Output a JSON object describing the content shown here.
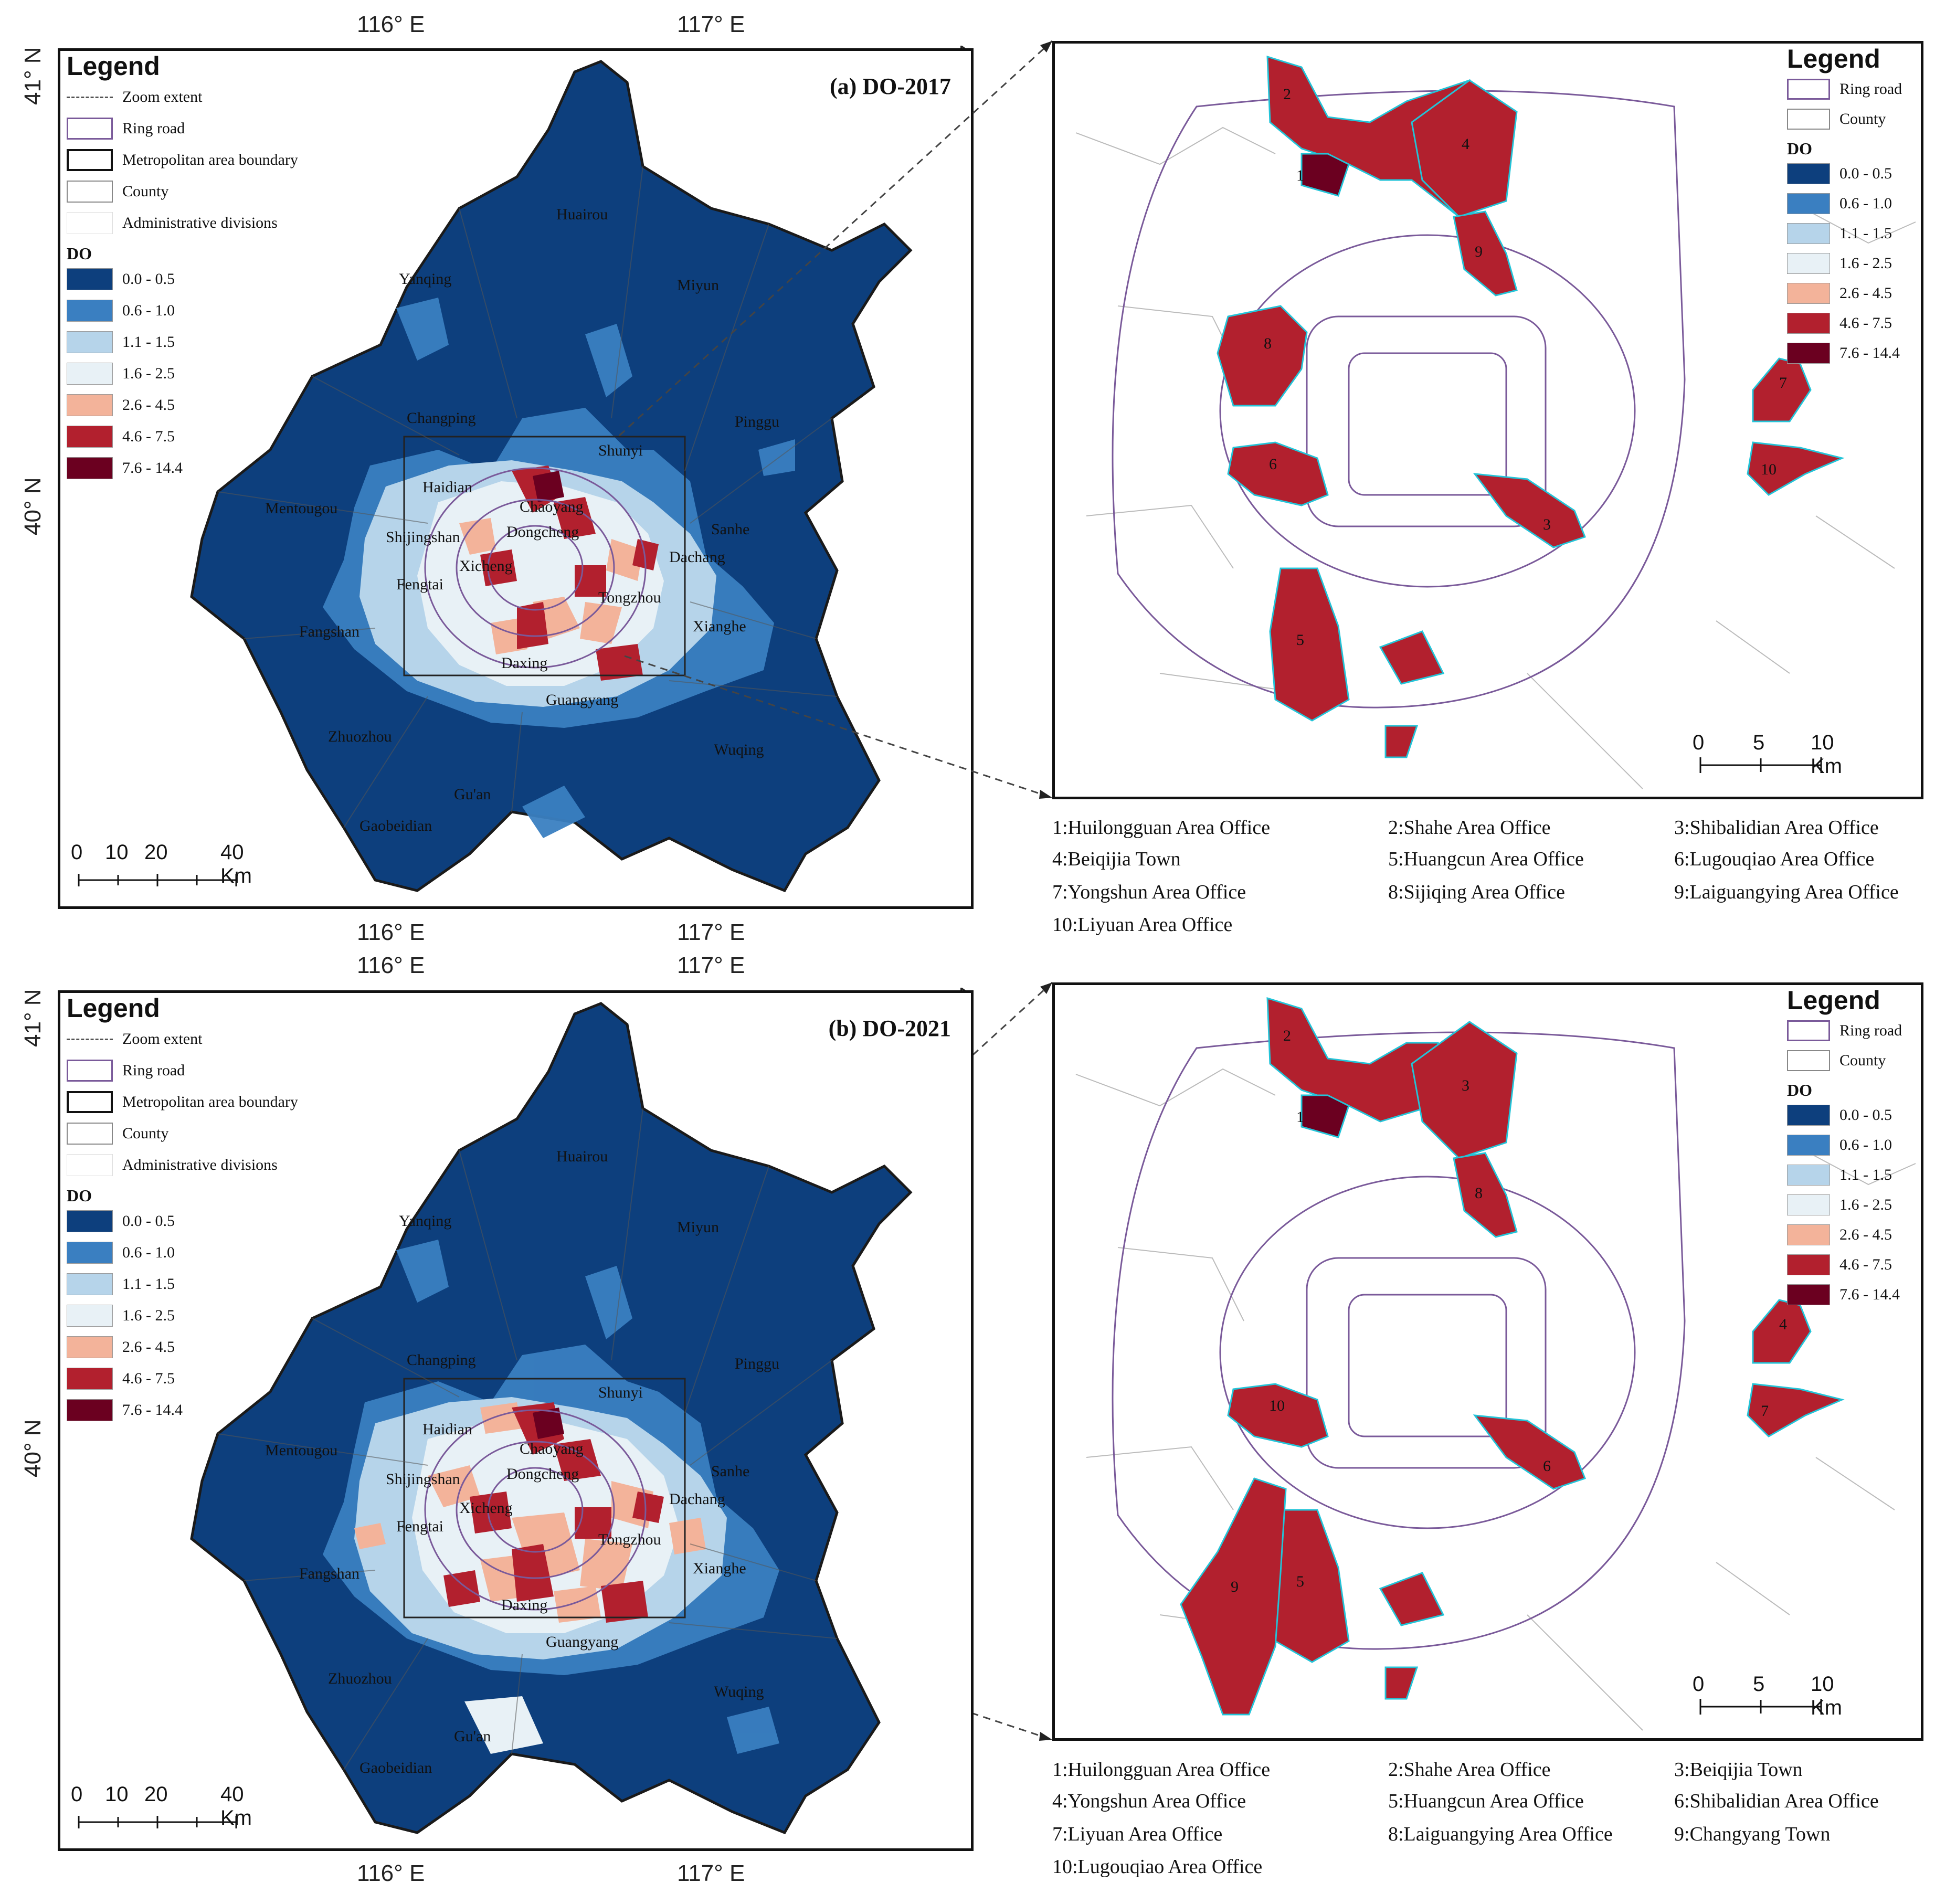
{
  "coords": {
    "lon_116": "116° E",
    "lon_117": "117° E",
    "lat_41": "41° N",
    "lat_40": "40° N"
  },
  "legend": {
    "title": "Legend",
    "zoom_extent": "Zoom extent",
    "ring_road": "Ring road",
    "metro_boundary": "Metropolitan area boundary",
    "county": "County",
    "admin_divisions": "Administrative divisions",
    "do_label": "DO",
    "classes": [
      {
        "label": "0.0 - 0.5",
        "color": "#0d3f7d"
      },
      {
        "label": "0.6 - 1.0",
        "color": "#3a7fc1"
      },
      {
        "label": "1.1 - 1.5",
        "color": "#b6d4ea"
      },
      {
        "label": "1.6 - 2.5",
        "color": "#e8f1f6"
      },
      {
        "label": "2.6 - 4.5",
        "color": "#f3b39a"
      },
      {
        "label": "4.6 - 7.5",
        "color": "#b2202e"
      },
      {
        "label": "7.6 - 14.4",
        "color": "#6b0020"
      }
    ]
  },
  "colors": {
    "ring_road": "#7a5a9a",
    "boundary": "#111111",
    "cyan_edge": "#23c4d8"
  },
  "places": [
    "Huairou",
    "Yanqing",
    "Miyun",
    "Changping",
    "Shunyi",
    "Pinggu",
    "Haidian",
    "Mentougou",
    "Chaoyang",
    "Shijingshan",
    "Dongcheng",
    "Sanhe",
    "Xicheng",
    "Dachang",
    "Fengtai",
    "Tongzhou",
    "Fangshan",
    "Xianghe",
    "Daxing",
    "Guangyang",
    "Zhuozhou",
    "Wuqing",
    "Gu'an",
    "Gaobeidian"
  ],
  "scale_left": {
    "ticks": [
      "0",
      "10",
      "20",
      "40 Km"
    ]
  },
  "scale_right": {
    "ticks": [
      "0",
      "5",
      "10 Km"
    ]
  },
  "panel_a": {
    "title": "(a) DO-2017",
    "numbers": [
      "1",
      "2",
      "3",
      "4",
      "5",
      "6",
      "7",
      "8",
      "9",
      "10"
    ],
    "captions": [
      "1:Huilongguan Area Office",
      "2:Shahe Area Office",
      "3:Shibalidian Area Office",
      "4:Beiqijia Town",
      "5:Huangcun Area Office",
      "6:Lugouqiao Area Office",
      "7:Yongshun Area Office",
      "8:Sijiqing Area Office",
      "9:Laiguangying Area Office",
      "10:Liyuan Area Office"
    ]
  },
  "panel_b": {
    "title": "(b) DO-2021",
    "numbers": [
      "1",
      "2",
      "3",
      "4",
      "5",
      "6",
      "7",
      "8",
      "9",
      "10"
    ],
    "captions": [
      "1:Huilongguan Area Office",
      "2:Shahe Area Office",
      "3:Beiqijia Town",
      "4:Yongshun Area Office",
      "5:Huangcun Area Office",
      "6:Shibalidian Area Office",
      "7:Liyuan Area Office",
      "8:Laiguangying Area Office",
      "9:Changyang Town",
      "10:Lugouqiao Area Office"
    ]
  }
}
